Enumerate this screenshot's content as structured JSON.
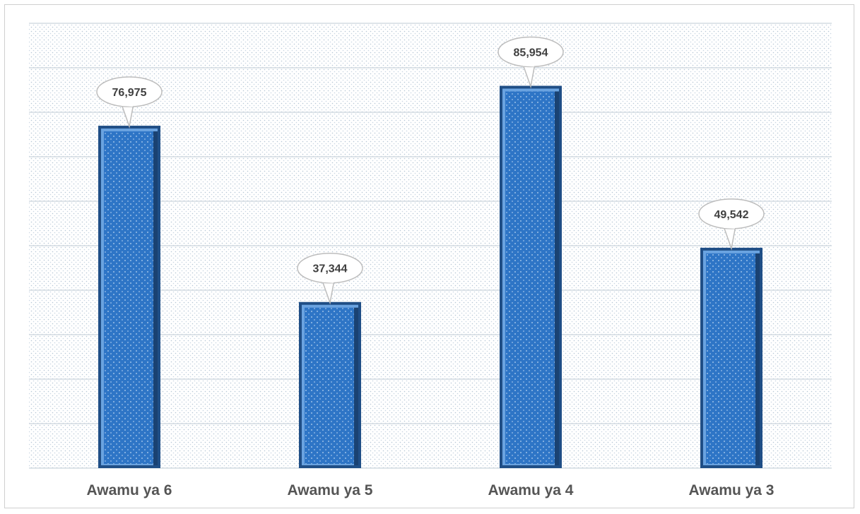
{
  "chart_data": {
    "type": "bar",
    "title": "",
    "xlabel": "",
    "ylabel": "",
    "categories": [
      "Awamu ya 6",
      "Awamu ya 5",
      "Awamu ya 4",
      "Awamu ya 3"
    ],
    "series": [
      {
        "values": [
          76975,
          37344,
          85954,
          49542
        ]
      }
    ],
    "data_labels": [
      "76,975",
      "37,344",
      "85,954",
      "49,542"
    ],
    "ylim": [
      0,
      100000
    ],
    "grid": true,
    "legend": "none",
    "colors": {
      "bar": "#2e75c6",
      "bar_edge_dark": "#1f4e86",
      "bar_edge_light": "#6aa3e0",
      "gridline": "#c9d3dc",
      "plot_dots": "#b7c7d6",
      "callout_border": "#bdbdbd"
    }
  }
}
